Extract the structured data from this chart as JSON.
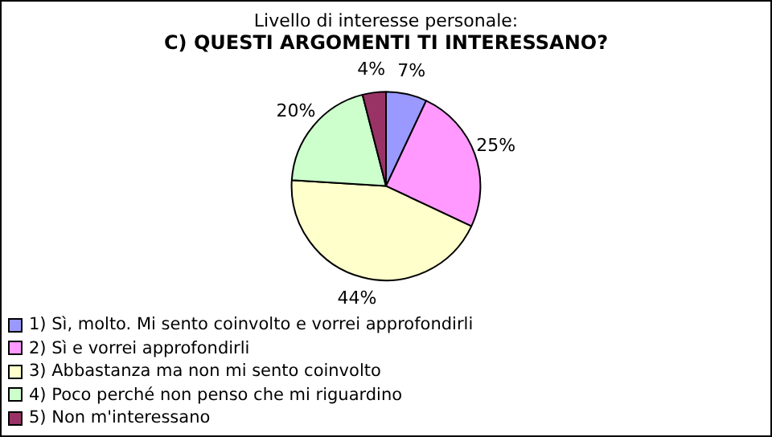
{
  "chart_data": {
    "type": "pie",
    "title": "Livello di interesse personale:",
    "subtitle": "C) QUESTI ARGOMENTI TI INTERESSANO?",
    "categories": [
      "1) Sì, molto. Mi sento coinvolto e vorrei approfondirli",
      "2) Sì e vorrei approfondirli",
      "3) Abbastanza ma non mi sento coinvolto",
      "4) Poco perché non penso che mi riguardino",
      "5) Non m'interessano"
    ],
    "values": [
      7,
      25,
      44,
      20,
      4
    ],
    "colors": [
      "#9999ff",
      "#ff99ff",
      "#ffffcc",
      "#ccffcc",
      "#993366"
    ],
    "value_labels": [
      "7%",
      "25%",
      "44%",
      "20%",
      "4%"
    ],
    "legend": "bottom"
  }
}
